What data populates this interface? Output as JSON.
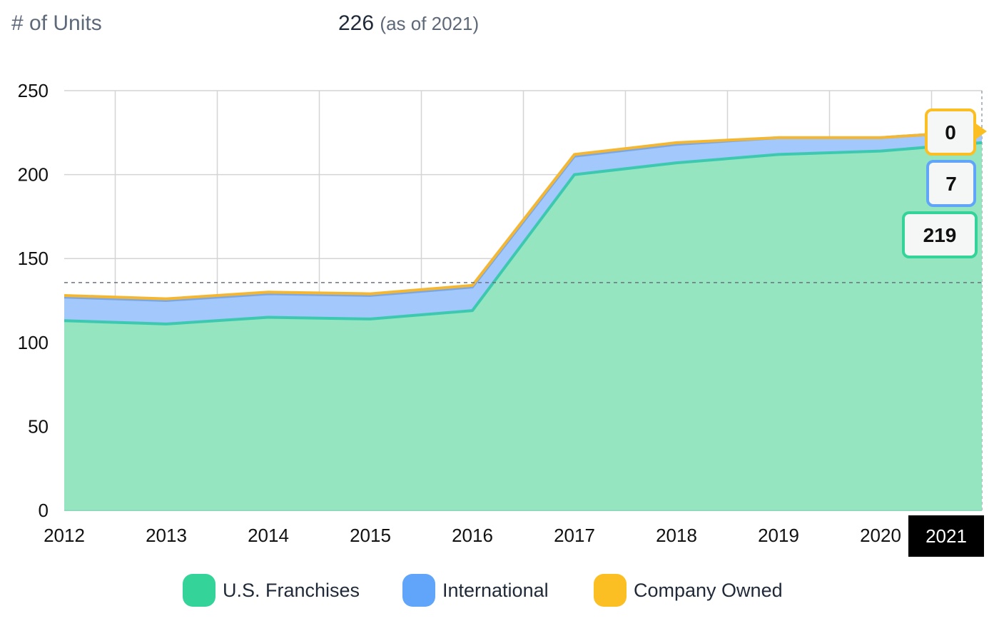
{
  "header": {
    "label": "# of Units",
    "value": "226",
    "as_of": "(as of 2021)"
  },
  "chart_data": {
    "type": "area",
    "stacked": true,
    "x": [
      "2012",
      "2013",
      "2014",
      "2015",
      "2016",
      "2017",
      "2018",
      "2019",
      "2020",
      "2021"
    ],
    "series": [
      {
        "name": "U.S. Franchises",
        "color": "#34d399",
        "values": [
          113,
          111,
          115,
          114,
          119,
          200,
          207,
          212,
          214,
          219
        ]
      },
      {
        "name": "International",
        "color": "#60a5fa",
        "values": [
          14,
          14,
          14,
          14,
          14,
          11,
          11,
          10,
          8,
          7
        ]
      },
      {
        "name": "Company Owned",
        "color": "#fbbf24",
        "values": [
          1,
          1,
          1,
          1,
          1,
          1,
          1,
          0,
          0,
          0
        ]
      }
    ],
    "ylim": [
      0,
      250
    ],
    "yticks": [
      0,
      50,
      100,
      150,
      200,
      250
    ],
    "grid": true,
    "legend_position": "bottom",
    "highlight": {
      "x": "2021",
      "values": [
        "219",
        "7",
        "0"
      ]
    }
  }
}
